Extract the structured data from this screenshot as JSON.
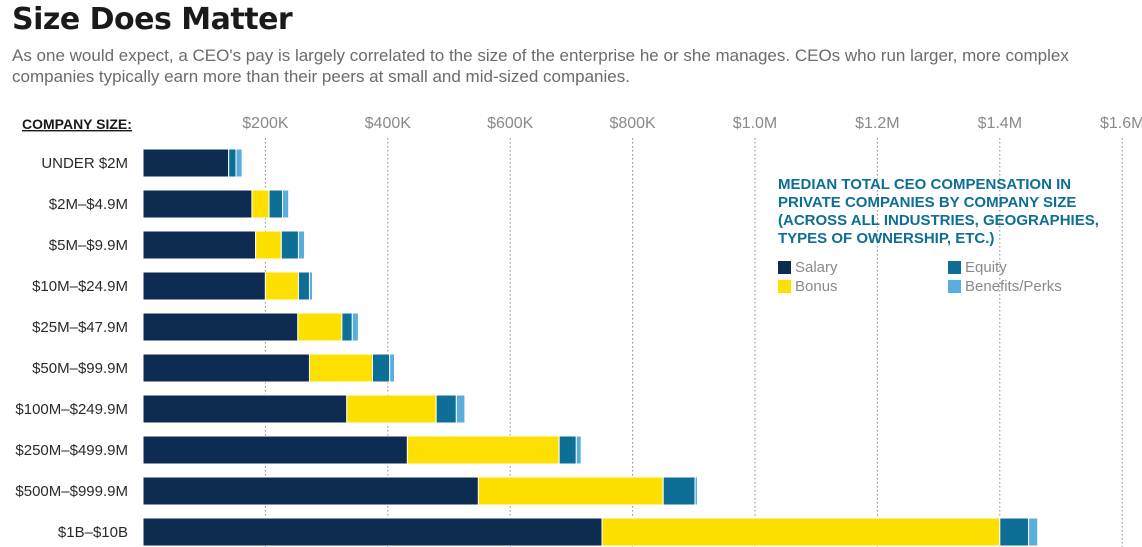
{
  "header": {
    "title": "Size Does Matter",
    "subtitle": "As one would expect, a CEO's pay is largely correlated to the size of the enterprise he or she manages. CEOs who run larger, more complex companies typically earn more than their peers at small and mid-sized companies."
  },
  "colors": {
    "salary": "#0e2b52",
    "bonus": "#fde000",
    "equity": "#0d6e96",
    "benefits": "#5aaedd",
    "grid": "#888888",
    "legend_title": "#0d6e96"
  },
  "legend": {
    "title": "MEDIAN TOTAL CEO COMPENSATION IN PRIVATE COMPANIES BY COMPANY SIZE (ACROSS ALL INDUSTRIES, GEOGRAPHIES, TYPES OF OWNERSHIP, ETC.)",
    "items": {
      "salary": "Salary",
      "bonus": "Bonus",
      "equity": "Equity",
      "benefits": "Benefits/Perks"
    }
  },
  "chart_data": {
    "type": "bar",
    "orientation": "horizontal",
    "stacked": true,
    "category_header": "COMPANY SIZE:",
    "categories": [
      "UNDER $2M",
      "$2M–$4.9M",
      "$5M–$9.9M",
      "$10M–$24.9M",
      "$25M–$47.9M",
      "$50M–$99.9M",
      "$100M–$249.9M",
      "$250M–$499.9M",
      "$500M–$999.9M",
      "$1B–$10B"
    ],
    "series": [
      {
        "name": "Salary",
        "color": "#0e2b52",
        "values": [
          140000,
          178000,
          184000,
          200000,
          253000,
          272000,
          333000,
          432000,
          548000,
          750000
        ]
      },
      {
        "name": "Bonus",
        "color": "#fde000",
        "values": [
          0,
          28000,
          42000,
          54000,
          72000,
          103000,
          146000,
          248000,
          302000,
          650000
        ]
      },
      {
        "name": "Equity",
        "color": "#0d6e96",
        "values": [
          12000,
          22000,
          28000,
          18000,
          17000,
          28000,
          33000,
          28000,
          52000,
          47000
        ]
      },
      {
        "name": "Benefits/Perks",
        "color": "#5aaedd",
        "values": [
          10000,
          10000,
          10000,
          5000,
          10000,
          8000,
          14000,
          8000,
          4000,
          15000
        ]
      }
    ],
    "ticks": [
      200000,
      400000,
      600000,
      800000,
      1000000,
      1200000,
      1400000,
      1600000
    ],
    "tick_labels": [
      "$200K",
      "$400K",
      "$600K",
      "$800K",
      "$1.0M",
      "$1.2M",
      "$1.4M",
      "$1.6M"
    ],
    "xlim": [
      0,
      1650000
    ],
    "grid": "vertical dotted lines at ticks",
    "legend_position": "right-center"
  }
}
